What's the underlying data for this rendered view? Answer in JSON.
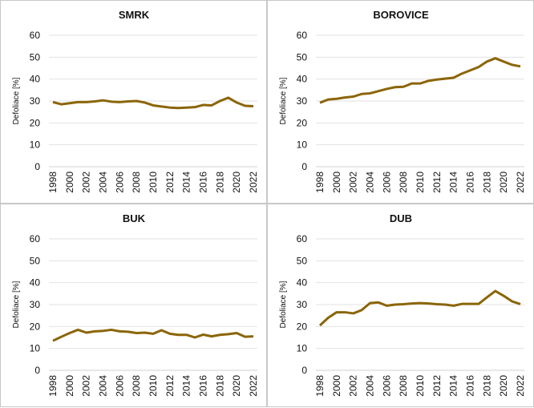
{
  "chart_data": [
    {
      "type": "line",
      "title": "SMRK",
      "xlabel": "",
      "ylabel": "Defoliace [%]",
      "ylim": [
        0,
        60
      ],
      "yticks": [
        0,
        10,
        20,
        30,
        40,
        50,
        60
      ],
      "x": [
        1998,
        1999,
        2000,
        2001,
        2002,
        2003,
        2004,
        2005,
        2006,
        2007,
        2008,
        2009,
        2010,
        2011,
        2012,
        2013,
        2014,
        2015,
        2016,
        2017,
        2018,
        2019,
        2020,
        2021,
        2022
      ],
      "xticks": [
        "1998",
        "2000",
        "2002",
        "2004",
        "2006",
        "2008",
        "2010",
        "2012",
        "2014",
        "2016",
        "2018",
        "2020",
        "2022"
      ],
      "values": [
        29.5,
        28.5,
        29,
        29.5,
        29.5,
        29.8,
        30.3,
        29.7,
        29.5,
        29.8,
        30,
        29.3,
        28,
        27.5,
        27,
        26.8,
        27,
        27.2,
        28.2,
        28,
        30,
        31.5,
        29.3,
        27.8,
        27.6
      ],
      "color": "#8B6508",
      "grid": true
    },
    {
      "type": "line",
      "title": "BOROVICE",
      "xlabel": "",
      "ylabel": "Defoliace [%]",
      "ylim": [
        0,
        60
      ],
      "yticks": [
        0,
        10,
        20,
        30,
        40,
        50,
        60
      ],
      "x": [
        1998,
        1999,
        2000,
        2001,
        2002,
        2003,
        2004,
        2005,
        2006,
        2007,
        2008,
        2009,
        2010,
        2011,
        2012,
        2013,
        2014,
        2015,
        2016,
        2017,
        2018,
        2019,
        2020,
        2021,
        2022
      ],
      "xticks": [
        "1998",
        "2000",
        "2002",
        "2004",
        "2006",
        "2008",
        "2010",
        "2012",
        "2014",
        "2016",
        "2018",
        "2020",
        "2022"
      ],
      "values": [
        29.2,
        30.7,
        31,
        31.6,
        32,
        33.2,
        33.5,
        34.5,
        35.5,
        36.3,
        36.5,
        38,
        38,
        39.2,
        39.8,
        40.2,
        40.6,
        42.5,
        44,
        45.5,
        48,
        49.5,
        48,
        46.5,
        45.8
      ],
      "color": "#8B6508",
      "grid": true
    },
    {
      "type": "line",
      "title": "BUK",
      "xlabel": "",
      "ylabel": "Defoliace [%]",
      "ylim": [
        0,
        60
      ],
      "yticks": [
        0,
        10,
        20,
        30,
        40,
        50,
        60
      ],
      "x": [
        1998,
        1999,
        2000,
        2001,
        2002,
        2003,
        2004,
        2005,
        2006,
        2007,
        2008,
        2009,
        2010,
        2011,
        2012,
        2013,
        2014,
        2015,
        2016,
        2017,
        2018,
        2019,
        2020,
        2021,
        2022
      ],
      "xticks": [
        "1998",
        "2000",
        "2002",
        "2004",
        "2006",
        "2008",
        "2010",
        "2012",
        "2014",
        "2016",
        "2018",
        "2020",
        "2022"
      ],
      "values": [
        13.5,
        15.3,
        17,
        18.5,
        17.2,
        17.8,
        18,
        18.5,
        17.8,
        17.6,
        17,
        17.2,
        16.7,
        18.3,
        16.7,
        16.2,
        16.2,
        15,
        16.3,
        15.5,
        16.2,
        16.5,
        17,
        15.3,
        15.5
      ],
      "color": "#8B6508",
      "grid": true
    },
    {
      "type": "line",
      "title": "DUB",
      "xlabel": "",
      "ylabel": "Defoliace [%]",
      "ylim": [
        0,
        60
      ],
      "yticks": [
        0,
        10,
        20,
        30,
        40,
        50,
        60
      ],
      "x": [
        1998,
        1999,
        2000,
        2001,
        2002,
        2003,
        2004,
        2005,
        2006,
        2007,
        2008,
        2009,
        2010,
        2011,
        2012,
        2013,
        2014,
        2015,
        2016,
        2017,
        2018,
        2019,
        2020,
        2021,
        2022
      ],
      "xticks": [
        "1998",
        "2000",
        "2002",
        "2004",
        "2006",
        "2008",
        "2010",
        "2012",
        "2014",
        "2016",
        "2018",
        "2020",
        "2022"
      ],
      "values": [
        20.5,
        24,
        26.5,
        26.5,
        26,
        27.5,
        30.7,
        31,
        29.5,
        30,
        30.2,
        30.5,
        30.7,
        30.5,
        30.2,
        30,
        29.5,
        30.3,
        30.3,
        30.3,
        33.3,
        36.2,
        34,
        31.5,
        30.2
      ],
      "color": "#8B6508",
      "grid": true
    }
  ]
}
